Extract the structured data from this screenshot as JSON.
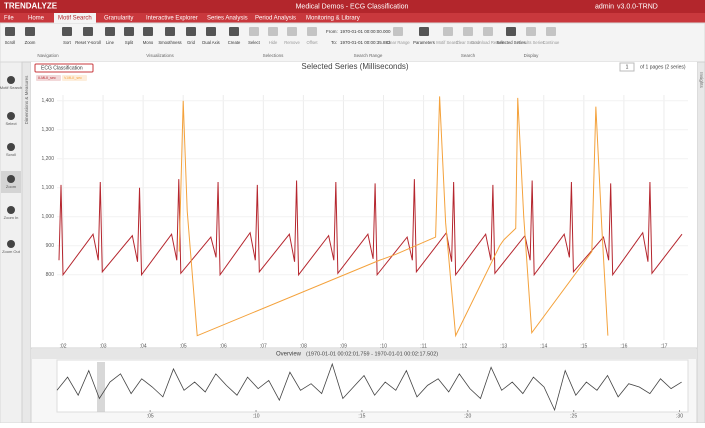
{
  "header": {
    "logo": "TRENDALYZE",
    "title": "Medical Demos - ECG Classification",
    "user": "admin",
    "version": "v3.0.0-TRND"
  },
  "tabs": [
    "File",
    "Home",
    "Motif Search",
    "Granularity",
    "Interactive Explorer",
    "Series Analysis",
    "Period Analysis",
    "Monitoring & Library"
  ],
  "ribbon": {
    "buttons": [
      "Scroll",
      "Zoom",
      "Sort",
      "Reset Y-scroll",
      "Line",
      "Split",
      "Mono",
      "Smoothness",
      "Grid",
      "Dual Axis",
      "Create",
      "Select",
      "Hide",
      "Remove",
      "Offset",
      "Clear Range",
      "Parameters",
      "Motif Search",
      "Clear Search",
      "Download Results",
      "Selected Series",
      "Results Series",
      "Continue"
    ],
    "groups": [
      "Navigation",
      "Visualizations",
      "Selections",
      "Search Range",
      "Search",
      "Display"
    ],
    "from_label": "From:",
    "from": "1970-01-01 00:00:00.000",
    "to_label": "To:",
    "to": "1970-01-01 00:00:35.883"
  },
  "sidebar": [
    "Motif Search",
    "Select",
    "Scroll",
    "Zoom",
    "Zoom In",
    "Zoom Out"
  ],
  "side_tabs": {
    "left": "Dimensions & Measures",
    "right": "Insights"
  },
  "panel": {
    "title": "Selected Series (Milliseconds)",
    "page": "1",
    "pages": "of 1 pages (2 series)",
    "tag": "ECG Classification"
  },
  "overview": {
    "title": "Overview",
    "range": "(1970-01-01 00:02:01.759 - 1970-01-01 00:02:17.502)"
  },
  "chart_data": [
    {
      "type": "line",
      "grid": true,
      "xlim": [
        1.85,
        17.6
      ],
      "ylim": [
        575,
        1420
      ],
      "xticks": [
        {
          "value": 2,
          "label": ":02"
        },
        {
          "value": 3,
          "label": ":03"
        },
        {
          "value": 4,
          "label": ":04"
        },
        {
          "value": 5,
          "label": ":05"
        },
        {
          "value": 6,
          "label": ":06"
        },
        {
          "value": 7,
          "label": ":07"
        },
        {
          "value": 8,
          "label": ":08"
        },
        {
          "value": 9,
          "label": ":09"
        },
        {
          "value": 10,
          "label": ":10"
        },
        {
          "value": 11,
          "label": ":11"
        },
        {
          "value": 12,
          "label": ":12"
        },
        {
          "value": 13,
          "label": ":13"
        },
        {
          "value": 14,
          "label": ":14"
        },
        {
          "value": 15,
          "label": ":15"
        },
        {
          "value": 16,
          "label": ":16"
        },
        {
          "value": 17,
          "label": ":17"
        }
      ],
      "yticks": [
        800,
        900,
        {
          "value": 1000,
          "label": "1,000"
        },
        {
          "value": 1100,
          "label": "1,100"
        },
        {
          "value": 1200,
          "label": "1,200"
        },
        {
          "value": 1300,
          "label": "1,300"
        },
        {
          "value": 1400,
          "label": "1,400"
        }
      ],
      "series": [
        {
          "name": "II-MLII_sec",
          "color": "#b5262e",
          "x": [
            1.9,
            1.95,
            2.0,
            2.75,
            2.88,
            2.93,
            2.98,
            3.73,
            3.86,
            3.91,
            3.96,
            4.71,
            4.84,
            4.89,
            4.94,
            5.69,
            5.82,
            5.87,
            5.92,
            6.67,
            6.8,
            6.85,
            6.9,
            7.65,
            7.78,
            7.83,
            7.88,
            8.63,
            8.76,
            8.81,
            8.86,
            9.61,
            9.74,
            9.79,
            9.84,
            10.59,
            10.72,
            10.77,
            10.82,
            11.57,
            11.7,
            11.75,
            11.8,
            12.55,
            12.68,
            12.73,
            12.78,
            13.53,
            13.66,
            13.71,
            13.76,
            14.51,
            14.64,
            14.69,
            14.74,
            15.49,
            15.62,
            15.67,
            15.72,
            16.47,
            16.6,
            16.65,
            16.7,
            17.45
          ],
          "values": [
            850,
            1110,
            800,
            940,
            850,
            1120,
            810,
            935,
            845,
            1100,
            800,
            940,
            850,
            1130,
            805,
            930,
            860,
            1120,
            800,
            945,
            850,
            1110,
            810,
            940,
            845,
            1125,
            800,
            935,
            850,
            1120,
            805,
            940,
            855,
            1115,
            800,
            930,
            850,
            1130,
            810,
            945,
            845,
            1120,
            800,
            940,
            850,
            1110,
            805,
            935,
            850,
            1125,
            800,
            940,
            860,
            1120,
            810,
            930,
            850,
            1115,
            800,
            945,
            845,
            1120,
            805,
            940
          ]
        },
        {
          "name": "V-MLII_sec",
          "color": "#f4a23c",
          "x": [
            4.9,
            5.0,
            5.1,
            5.35,
            9.9,
            10.3,
            11.3,
            11.4,
            11.55,
            11.8,
            12.9,
            13.0,
            13.3,
            13.35,
            13.5,
            13.7,
            15.2,
            15.3,
            15.45,
            15.6
          ],
          "values": [
            880,
            1400,
            1020,
            590,
            850,
            870,
            930,
            1415,
            980,
            590,
            900,
            920,
            960,
            1410,
            1000,
            600,
            880,
            1380,
            960,
            590
          ]
        }
      ]
    },
    {
      "type": "line",
      "xlim": [
        0.6,
        30.4
      ],
      "xticks": [
        {
          "value": 5,
          "label": ":05"
        },
        {
          "value": 10,
          "label": ":10"
        },
        {
          "value": 15,
          "label": ":15"
        },
        {
          "value": 20,
          "label": ":20"
        },
        {
          "value": 25,
          "label": ":25"
        },
        {
          "value": 30,
          "label": ":30"
        }
      ],
      "series": [
        {
          "color": "#444444",
          "x": [
            0.6,
            1.1,
            1.6,
            2.1,
            2.6,
            3.1,
            3.6,
            4.1,
            4.6,
            5.1,
            5.6,
            6.1,
            6.6,
            7.1,
            7.6,
            8.1,
            8.6,
            9.1,
            9.6,
            10.1,
            10.6,
            11.1,
            11.6,
            12.1,
            12.6,
            13.1,
            13.6,
            14.1,
            14.6,
            15.1,
            15.6,
            16.1,
            16.6,
            17.1,
            17.6,
            18.1,
            18.6,
            19.1,
            19.6,
            20.1,
            20.6,
            21.1,
            21.6,
            22.1,
            22.6,
            23.1,
            23.6,
            24.1,
            24.6,
            25.1,
            25.6,
            26.1,
            26.6,
            27.1,
            27.6,
            28.1,
            28.6,
            29.1,
            29.6,
            30.1
          ],
          "values": [
            50,
            58,
            47,
            62,
            45,
            55,
            60,
            48,
            57,
            52,
            46,
            63,
            50,
            55,
            49,
            60,
            53,
            47,
            58,
            51,
            56,
            44,
            61,
            50,
            54,
            48,
            66,
            45,
            52,
            59,
            47,
            55,
            50,
            62,
            46,
            53,
            57,
            49,
            60,
            51,
            45,
            64,
            50,
            55,
            48,
            58,
            52,
            38,
            62,
            47,
            55,
            50,
            59,
            46,
            54,
            52,
            48,
            57,
            51,
            55
          ]
        }
      ]
    }
  ]
}
